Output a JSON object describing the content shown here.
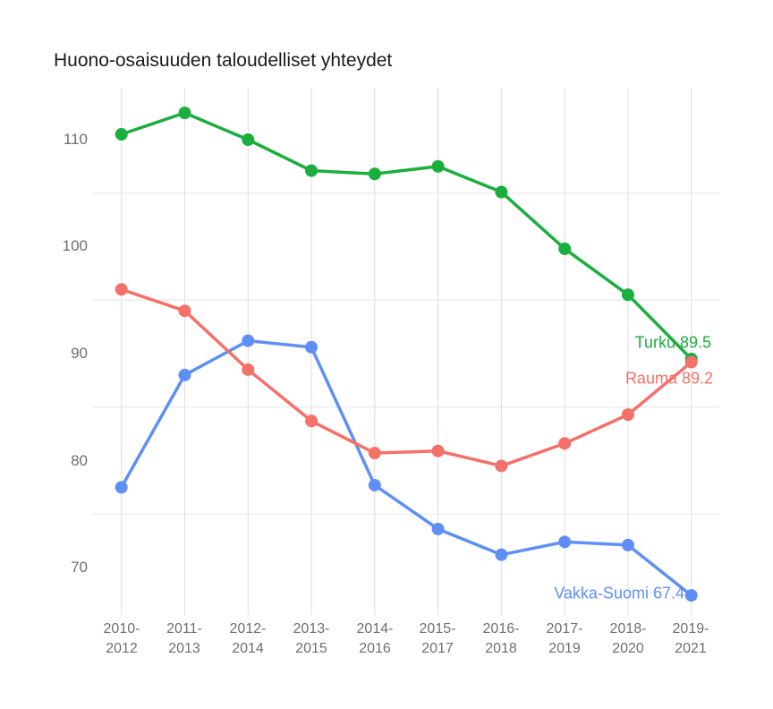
{
  "title": "Huono-osaisuuden taloudelliset yhteydet",
  "chart_data": {
    "type": "line",
    "title": "Huono-osaisuuden taloudelliset yhteydet",
    "xlabel": "",
    "ylabel": "",
    "categories": [
      "2010-2012",
      "2011-2013",
      "2012-2014",
      "2013-2015",
      "2014-2016",
      "2015-2017",
      "2016-2018",
      "2017-2019",
      "2018-2020",
      "2019-2021"
    ],
    "x_tick_lines": [
      [
        "2010-",
        "2012"
      ],
      [
        "2011-",
        "2013"
      ],
      [
        "2012-",
        "2014"
      ],
      [
        "2013-",
        "2015"
      ],
      [
        "2014-",
        "2016"
      ],
      [
        "2015-",
        "2017"
      ],
      [
        "2016-",
        "2018"
      ],
      [
        "2017-",
        "2019"
      ],
      [
        "2018-",
        "2020"
      ],
      [
        "2019-",
        "2021"
      ]
    ],
    "y_tick_labels": [
      "110",
      "100",
      "90",
      "80",
      "70"
    ],
    "y_ticks": [
      110,
      100,
      90,
      80,
      70
    ],
    "y_gridlines": [
      105,
      95,
      85,
      75
    ],
    "ylim": [
      65.5,
      115
    ],
    "grid": "on",
    "legend_position": "line-end-labels",
    "series": [
      {
        "name": "Turku",
        "color": "#1aae3e",
        "end_label": "Turku 89.5",
        "last_value": 89.5,
        "values": [
          110.5,
          112.5,
          110,
          107.1,
          106.8,
          107.5,
          105.1,
          99.8,
          95.5,
          89.5
        ]
      },
      {
        "name": "Rauma",
        "color": "#f4716a",
        "end_label": "Rauma 89.2",
        "last_value": 89.2,
        "values": [
          96,
          94,
          88.5,
          83.7,
          80.7,
          80.9,
          79.5,
          81.6,
          84.3,
          89.2
        ]
      },
      {
        "name": "Vakka-Suomi",
        "color": "#5f8ff5",
        "end_label": "Vakka-Suomi 67.4",
        "last_value": 67.4,
        "values": [
          77.5,
          88,
          91.2,
          90.6,
          77.7,
          73.6,
          71.2,
          72.4,
          72.1,
          67.4
        ]
      }
    ],
    "colors": {
      "vertical_grid": "#dddddd",
      "horizontal_grid": "#e5e5e5",
      "tick_text": "#6f6f6f",
      "title_text": "#1b1b1b"
    }
  }
}
